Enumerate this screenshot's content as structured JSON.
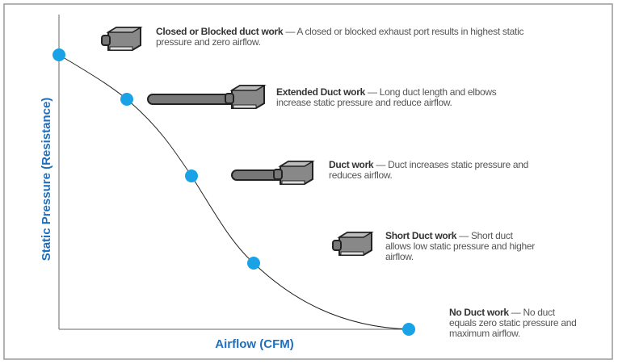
{
  "axes": {
    "y_label": "Static Pressure (Resistance)",
    "x_label": "Airflow (CFM)"
  },
  "annotations": [
    {
      "name": "Closed or Blocked duct work",
      "text": "— A closed or blocked exhaust port results in highest static pressure and zero airflow."
    },
    {
      "name": "Extended Duct work",
      "text": "— Long duct length and elbows increase static pressure and reduce airflow."
    },
    {
      "name": "Duct work",
      "text": "— Duct increases static pressure and reduces airflow."
    },
    {
      "name": "Short Duct work",
      "text": "— Short duct allows low static pressure and higher airflow."
    },
    {
      "name": "No Duct work",
      "text": "— No duct equals zero static pressure and maximum airflow."
    }
  ]
}
